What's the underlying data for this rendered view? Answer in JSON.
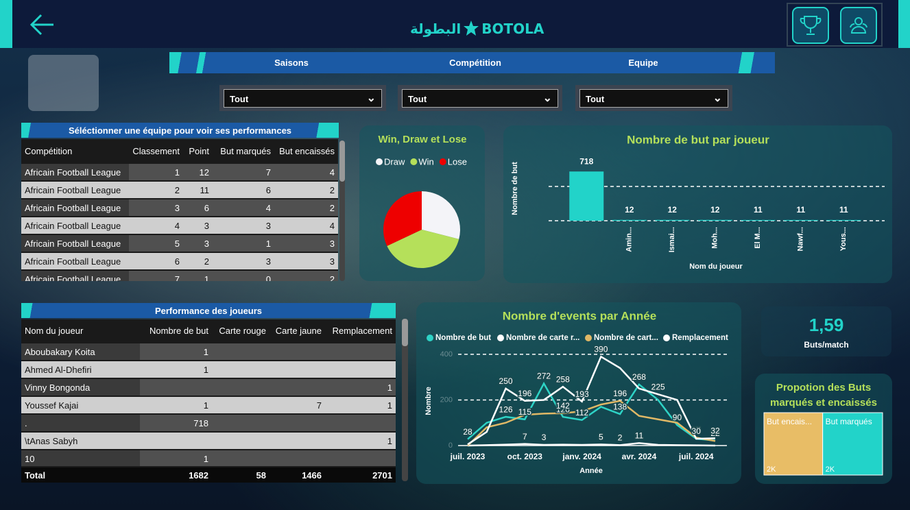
{
  "header": {
    "logo_arabic": "البطولة",
    "logo": "BOTOLA"
  },
  "filters": [
    {
      "label": "Saisons",
      "value": "Tout"
    },
    {
      "label": "Compétition",
      "value": "Tout"
    },
    {
      "label": "Equipe",
      "value": "Tout"
    }
  ],
  "team_table": {
    "title": "Séléctionner une équipe pour voir ses performances",
    "columns": [
      "Compétition",
      "Classement",
      "Point",
      "But marqués",
      "But encaissés"
    ],
    "rows": [
      [
        "Africain Football League",
        1,
        12,
        7,
        4
      ],
      [
        "Africain Football League",
        2,
        11,
        6,
        2
      ],
      [
        "Africain Football League",
        3,
        6,
        4,
        2
      ],
      [
        "Africain Football League",
        4,
        3,
        3,
        4
      ],
      [
        "Africain Football League",
        5,
        3,
        1,
        3
      ],
      [
        "Africain Football League",
        6,
        2,
        3,
        3
      ],
      [
        "Africain Football League",
        7,
        1,
        0,
        2
      ]
    ]
  },
  "player_table": {
    "title": "Performance des joueurs",
    "columns": [
      "Nom du joueur",
      "Nombre de but",
      "Carte rouge",
      "Carte jaune",
      "Remplacement"
    ],
    "rows": [
      [
        "Aboubakary Koita",
        1,
        null,
        null,
        null
      ],
      [
        "Ahmed Al-Dhefiri",
        1,
        null,
        null,
        null
      ],
      [
        "Vinny Bongonda",
        null,
        null,
        null,
        1
      ],
      [
        "Youssef Kajai",
        1,
        null,
        7,
        1
      ],
      [
        ".",
        718,
        null,
        null,
        null
      ],
      [
        "\\tAnas Sabyh",
        null,
        null,
        null,
        1
      ],
      [
        "10",
        1,
        null,
        null,
        null
      ]
    ],
    "total": [
      "Total",
      1682,
      58,
      1466,
      2701
    ]
  },
  "kpi": {
    "value": "1,59",
    "label": "Buts/match"
  },
  "chart_data": [
    {
      "type": "pie",
      "title": "Win, Draw et Lose",
      "categories": [
        "Draw",
        "Win",
        "Lose"
      ],
      "values": [
        29,
        39,
        32
      ],
      "colors": [
        "#f4f4f8",
        "#b5e05a",
        "#ee0000"
      ]
    },
    {
      "type": "bar",
      "title": "Nombre de but par joueur",
      "xlabel": "Nom du joueur",
      "ylabel": "Nombre de but",
      "categories": [
        null,
        "Amin...",
        "Ismai...",
        "Moh...",
        "El M...",
        "Nawf...",
        "Yous..."
      ],
      "values": [
        718,
        12,
        12,
        12,
        11,
        11,
        11
      ],
      "color": "#22d3c9",
      "ylim": [
        0,
        870
      ],
      "yticks": [
        0,
        500
      ],
      "grid": true
    },
    {
      "type": "line",
      "title": "Nombre d'events par Année",
      "xlabel": "Année",
      "ylabel": "Nombre",
      "categories": [
        "juil. 2023",
        null,
        null,
        "oct. 2023",
        null,
        null,
        "janv. 2024",
        null,
        null,
        "avr. 2024",
        null,
        null,
        "juil. 2024",
        null
      ],
      "ylim": [
        0,
        410
      ],
      "yticks": [
        0,
        200,
        400
      ],
      "grid": true,
      "series": [
        {
          "name": "Nombre de but",
          "color": "#2ed3c6",
          "values": [
            28,
            100,
            126,
            115,
            272,
            126,
            112,
            170,
            138,
            268,
            200,
            90,
            30,
            22
          ],
          "value_labels": [
            "28",
            null,
            "126",
            "115",
            "272",
            "126",
            "112",
            null,
            "138",
            "268",
            null,
            "90",
            null,
            "22"
          ]
        },
        {
          "name": "Nombre de carte r...",
          "color": "#ffffff",
          "values": [
            0,
            2,
            4,
            7,
            3,
            4,
            3,
            5,
            2,
            11,
            3,
            2,
            1,
            0
          ],
          "value_labels": [
            null,
            null,
            null,
            "7",
            "3",
            null,
            null,
            "5",
            "2",
            "11",
            null,
            null,
            null,
            null
          ]
        },
        {
          "name": "Nombre de cart...",
          "color": "#e0b866",
          "values": [
            0,
            80,
            100,
            135,
            140,
            142,
            150,
            180,
            196,
            130,
            115,
            100,
            35,
            20
          ],
          "value_labels": [
            null,
            null,
            null,
            null,
            null,
            "142",
            null,
            null,
            "196",
            null,
            null,
            null,
            "35",
            null
          ]
        },
        {
          "name": "Remplacement",
          "color": "#ffffff",
          "values": [
            5,
            60,
            250,
            196,
            200,
            258,
            193,
            390,
            340,
            250,
            225,
            200,
            30,
            32
          ],
          "value_labels": [
            null,
            null,
            "250",
            "196",
            null,
            "258",
            "193",
            "390",
            null,
            null,
            "225",
            null,
            "30",
            "32"
          ]
        }
      ]
    },
    {
      "type": "treemap",
      "title": "Propotion des Buts marqués et encaissés",
      "categories": [
        "But encais...",
        "But marqués"
      ],
      "values": [
        1650,
        1682
      ],
      "value_labels": [
        "2K",
        "2K"
      ],
      "colors": [
        "#e8bd66",
        "#22d3c9"
      ]
    }
  ]
}
